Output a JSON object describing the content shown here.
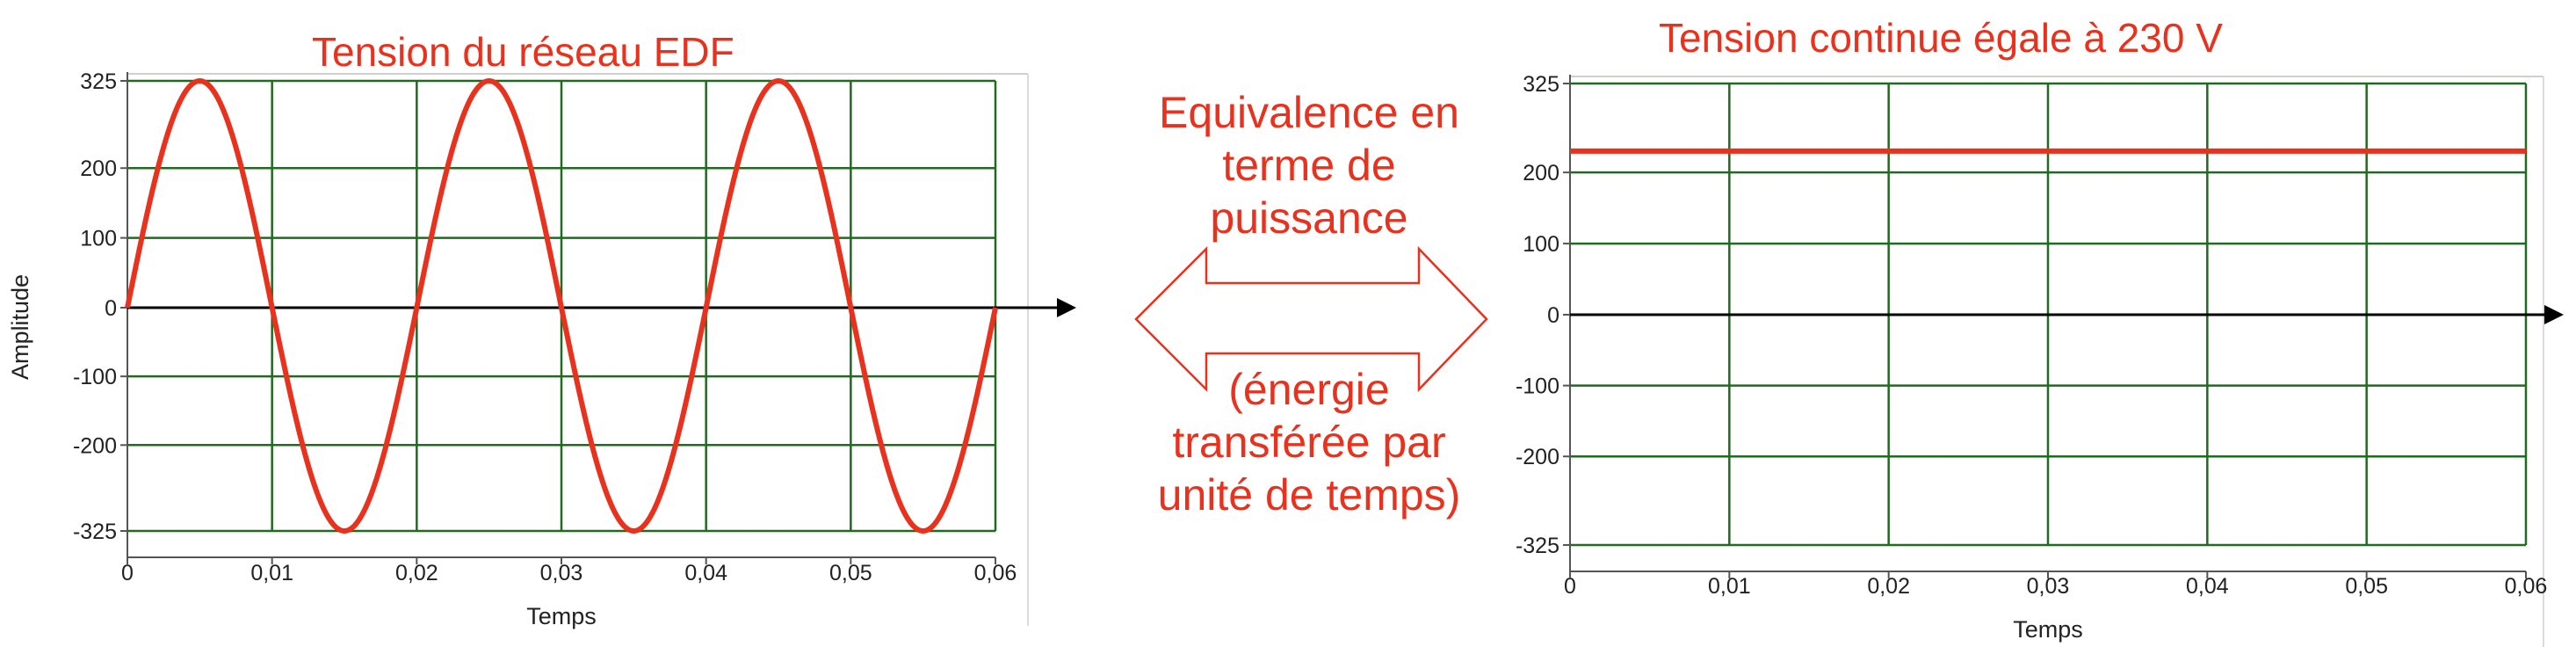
{
  "left_title": "Tension du réseau EDF",
  "right_title": "Tension continue égale à 230 V",
  "middle": {
    "top_lines": [
      "Equivalence en",
      "terme de",
      "puissance"
    ],
    "bottom_lines": [
      "(énergie",
      "transférée par",
      "unité de temps)"
    ]
  },
  "colors": {
    "curve": "#e8321e",
    "grid": "#1f6b1f",
    "axis": "#000000",
    "text": "#e8321e"
  },
  "chart_data": [
    {
      "type": "line",
      "title": "Tension du réseau EDF",
      "xlabel": "Temps",
      "ylabel": "Amplitude",
      "xlim": [
        0,
        0.06
      ],
      "ylim": [
        -325,
        325
      ],
      "x_ticks": [
        "0",
        "0,01",
        "0,02",
        "0,03",
        "0,04",
        "0,05",
        "0,06"
      ],
      "y_ticks": [
        "325",
        "200",
        "100",
        "0",
        "-100",
        "-200",
        "-325"
      ],
      "y_tick_values": [
        325,
        200,
        100,
        0,
        -100,
        -200,
        -325
      ],
      "grid": true,
      "series": [
        {
          "amplitude": 325,
          "frequency_hz": 50,
          "x": [
            0,
            0.0025,
            0.005,
            0.0075,
            0.01,
            0.0125,
            0.015,
            0.0175,
            0.02,
            0.0225,
            0.025,
            0.0275,
            0.03,
            0.0325,
            0.035,
            0.0375,
            0.04,
            0.0425,
            0.045,
            0.0475,
            0.05,
            0.0525,
            0.055,
            0.0575,
            0.06
          ],
          "values": [
            0,
            230,
            325,
            230,
            0,
            -230,
            -325,
            -230,
            0,
            230,
            325,
            230,
            0,
            -230,
            -325,
            -230,
            0,
            230,
            325,
            230,
            0,
            -230,
            -325,
            -230,
            0
          ]
        }
      ]
    },
    {
      "type": "line",
      "title": "Tension continue égale à 230 V",
      "xlabel": "Temps",
      "ylabel": "",
      "xlim": [
        0,
        0.06
      ],
      "ylim": [
        -325,
        325
      ],
      "x_ticks": [
        "0",
        "0,01",
        "0,02",
        "0,03",
        "0,04",
        "0,05",
        "0,06"
      ],
      "y_ticks": [
        "325",
        "200",
        "100",
        "0",
        "-100",
        "-200",
        "-325"
      ],
      "y_tick_values": [
        325,
        200,
        100,
        0,
        -100,
        -200,
        -325
      ],
      "grid": true,
      "series": [
        {
          "x": [
            0,
            0.06
          ],
          "values": [
            230,
            230
          ]
        }
      ]
    }
  ]
}
